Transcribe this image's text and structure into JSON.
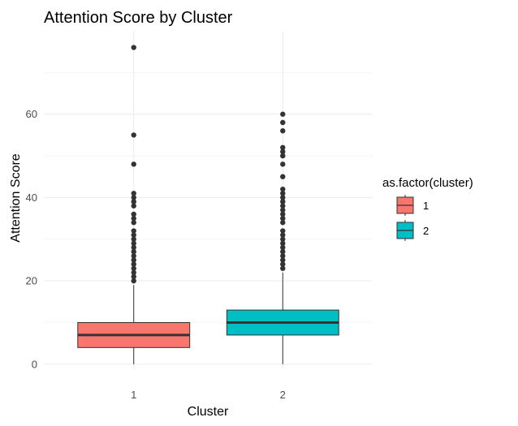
{
  "chart_data": {
    "type": "boxplot",
    "title": "Attention Score by Cluster",
    "xlabel": "Cluster",
    "ylabel": "Attention Score",
    "categories": [
      "1",
      "2"
    ],
    "ylim": [
      -1,
      80
    ],
    "yticks": [
      0,
      20,
      40,
      60
    ],
    "grid": true,
    "legend": {
      "title": "as.factor(cluster)",
      "position": "right",
      "entries": [
        {
          "label": "1",
          "color": "#F8766D"
        },
        {
          "label": "2",
          "color": "#00BFC4"
        }
      ]
    },
    "boxes": [
      {
        "category": "1",
        "color": "#F8766D",
        "q1": 4,
        "median": 7,
        "q3": 10,
        "whisker_low": 0,
        "whisker_high": 19,
        "outliers": [
          20,
          21,
          22,
          23,
          24,
          25,
          26,
          27,
          28,
          29,
          30,
          31,
          32,
          34,
          35,
          36,
          38,
          39,
          40,
          41,
          48,
          55,
          76
        ]
      },
      {
        "category": "2",
        "color": "#00BFC4",
        "q1": 7,
        "median": 10,
        "q3": 13,
        "whisker_low": 0,
        "whisker_high": 22,
        "outliers": [
          23,
          24,
          25,
          26,
          27,
          28,
          29,
          30,
          31,
          32,
          34,
          35,
          36,
          37,
          38,
          39,
          40,
          41,
          42,
          45,
          48,
          50,
          51,
          52,
          56,
          58,
          60
        ]
      }
    ]
  }
}
